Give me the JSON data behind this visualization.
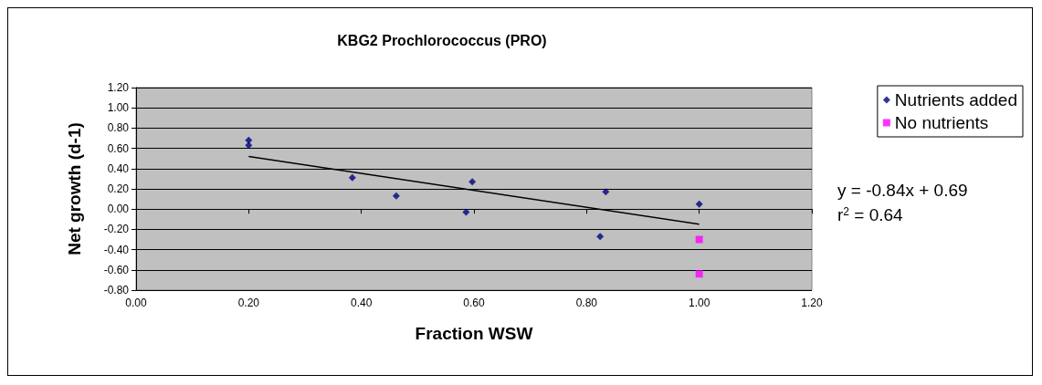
{
  "chart_data": {
    "type": "scatter",
    "title": "KBG2 Prochlorococcus (PRO)",
    "xlabel": "Fraction WSW",
    "ylabel": "Net growth (d-1)",
    "xlim": [
      0,
      1.2
    ],
    "xticks": [
      {
        "value": 0,
        "label": "0.00"
      },
      {
        "value": 0.2,
        "label": "0.20"
      },
      {
        "value": 0.4,
        "label": "0.40"
      },
      {
        "value": 0.6,
        "label": "0.60"
      },
      {
        "value": 0.8,
        "label": "0.80"
      },
      {
        "value": 1,
        "label": "1.00"
      },
      {
        "value": 1.2,
        "label": "1.20"
      }
    ],
    "ylim": [
      -0.8,
      1.2
    ],
    "yticks": [
      {
        "value": -0.8,
        "label": "-0.80"
      },
      {
        "value": -0.6,
        "label": "-0.60"
      },
      {
        "value": -0.4,
        "label": "-0.40"
      },
      {
        "value": -0.2,
        "label": "-0.20"
      },
      {
        "value": 0,
        "label": "0.00"
      },
      {
        "value": 0.2,
        "label": "0.20"
      },
      {
        "value": 0.4,
        "label": "0.40"
      },
      {
        "value": 0.6,
        "label": "0.60"
      },
      {
        "value": 0.8,
        "label": "0.80"
      },
      {
        "value": 1,
        "label": "1.00"
      },
      {
        "value": 1.2,
        "label": "1.20"
      }
    ],
    "grid": "y",
    "legend": "right",
    "series": [
      {
        "name": "Nutrients added",
        "color": "#000080",
        "marker": "diamond",
        "x": [
          0.2,
          0.2,
          0.384,
          0.462,
          0.586,
          0.597,
          0.824,
          0.834,
          1.0
        ],
        "values": [
          0.68,
          0.63,
          0.31,
          0.13,
          -0.03,
          0.27,
          -0.27,
          0.17,
          0.05
        ]
      },
      {
        "name": "No nutrients",
        "color": "#ff00ff",
        "marker": "square",
        "x": [
          1.0,
          1.0
        ],
        "values": [
          -0.3,
          -0.64
        ]
      },
      {
        "type": "line",
        "color": "#000000",
        "marker": "none",
        "x": [
          0.2,
          1.0
        ],
        "values": [
          0.52,
          -0.15
        ]
      }
    ],
    "annotations": [
      "y = -0.84x + 0.69",
      "r$^{2}$ = 0.64"
    ]
  }
}
